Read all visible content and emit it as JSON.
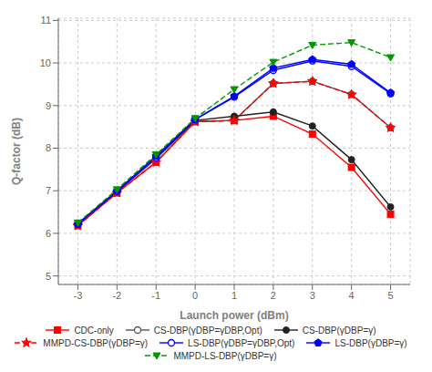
{
  "chart_data": {
    "type": "line",
    "x_label": "Launch power (dBm)",
    "y_label": "Q-factor (dB)",
    "x": [
      -3,
      -2,
      -1,
      0,
      1,
      2,
      3,
      4,
      5
    ],
    "xlim": [
      -3.5,
      5.5
    ],
    "ylim": [
      4.8,
      11.05
    ],
    "xticks": [
      -3,
      -2,
      -1,
      0,
      1,
      2,
      3,
      4,
      5
    ],
    "yticks": [
      5,
      6,
      7,
      8,
      9,
      10,
      11
    ],
    "grid": true,
    "legend": "bottom",
    "series": [
      {
        "name": "CDC-only",
        "color": "red",
        "marker": "square",
        "line_style": "solid",
        "values": [
          6.18,
          6.95,
          7.67,
          8.62,
          8.65,
          8.75,
          8.33,
          7.55,
          6.45
        ]
      },
      {
        "name": "CS-DBP(γDBP=γDBP,Opt)",
        "color": "#555555",
        "marker": "circle_open",
        "line_style": "solid",
        "values": [
          6.22,
          6.98,
          7.75,
          8.63,
          8.65,
          9.52,
          9.57,
          9.26,
          8.48
        ]
      },
      {
        "name": "CS-DBP(γDBP=γ)",
        "color": "#222222",
        "marker": "circle",
        "line_style": "solid",
        "values": [
          6.23,
          7.0,
          7.78,
          8.65,
          8.75,
          8.85,
          8.52,
          7.73,
          6.62
        ]
      },
      {
        "name": "MMPD-CS-DBP(γDBP=γ)",
        "color": "red",
        "marker": "star",
        "line_style": "dashed",
        "values": [
          6.18,
          6.95,
          7.67,
          8.62,
          8.65,
          9.52,
          9.57,
          9.26,
          8.48
        ]
      },
      {
        "name": "LS-DBP(γDBP=γDBP,Opt)",
        "color": "blue",
        "marker": "circle_open",
        "line_style": "solid",
        "values": [
          6.22,
          6.98,
          7.78,
          8.67,
          9.2,
          9.83,
          10.05,
          9.92,
          9.28
        ]
      },
      {
        "name": "LS-DBP(γDBP=γ)",
        "color": "blue",
        "marker": "pentagon",
        "line_style": "solid",
        "values": [
          6.22,
          7.0,
          7.82,
          8.68,
          9.22,
          9.88,
          10.08,
          9.97,
          9.3
        ]
      },
      {
        "name": "MMPD-LS-DBP(γDBP=γ)",
        "color": "#009900",
        "marker": "triangle_down",
        "line_style": "dashed",
        "values": [
          6.25,
          7.03,
          7.85,
          8.7,
          9.38,
          10.02,
          10.42,
          10.48,
          10.13
        ]
      }
    ]
  }
}
